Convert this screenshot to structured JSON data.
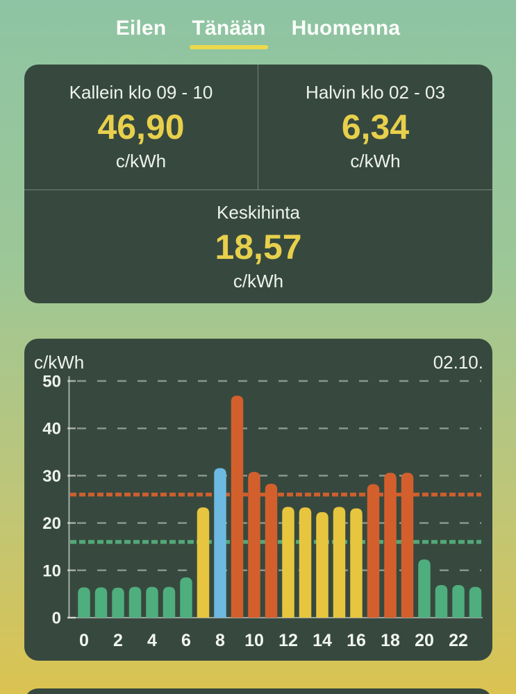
{
  "tabs": [
    {
      "label": "Eilen",
      "active": false
    },
    {
      "label": "Tänään",
      "active": true
    },
    {
      "label": "Huomenna",
      "active": false
    }
  ],
  "summary": {
    "expensive": {
      "label": "Kallein klo 09 - 10",
      "value": "46,90",
      "unit": "c/kWh"
    },
    "cheap": {
      "label": "Halvin klo 02 - 03",
      "value": "6,34",
      "unit": "c/kWh"
    },
    "average": {
      "label": "Keskihinta",
      "value": "18,57",
      "unit": "c/kWh"
    }
  },
  "chart_header": {
    "unit_label": "c/kWh",
    "date_label": "02.10."
  },
  "colors": {
    "accent_yellow": "#e8d04c",
    "tab_underline": "#ecd94a",
    "card_bg": "#37493e",
    "bar_cheap": "#4fae7d",
    "bar_normal": "#e7c53e",
    "bar_current": "#6db9e2",
    "bar_expensive": "#d35f2d",
    "threshold_expensive": "#cd5f2e",
    "threshold_cheap": "#53a878",
    "bg_top": "#8ec4a3",
    "bg_bottom": "#dbc351"
  },
  "chart_data": {
    "type": "bar",
    "ylabel": "c/kWh",
    "date": "02.10.",
    "hours": [
      0,
      1,
      2,
      3,
      4,
      5,
      6,
      7,
      8,
      9,
      10,
      11,
      12,
      13,
      14,
      15,
      16,
      17,
      18,
      19,
      20,
      21,
      22,
      23
    ],
    "values": [
      6.4,
      6.4,
      6.34,
      6.5,
      6.5,
      6.5,
      8.5,
      23.3,
      31.6,
      46.9,
      30.8,
      28.3,
      23.4,
      23.3,
      22.3,
      23.4,
      23.1,
      28.2,
      30.6,
      30.6,
      12.3,
      6.9,
      6.9,
      6.5
    ],
    "levels": [
      "cheap",
      "cheap",
      "cheap",
      "cheap",
      "cheap",
      "cheap",
      "cheap",
      "normal",
      "current",
      "expensive",
      "expensive",
      "expensive",
      "normal",
      "normal",
      "normal",
      "normal",
      "normal",
      "expensive",
      "expensive",
      "expensive",
      "cheap",
      "cheap",
      "cheap",
      "cheap"
    ],
    "current_hour": 8,
    "max_value": 46.9,
    "min_value": 6.34,
    "average_value": 18.57,
    "x_tick_labels": [
      "0",
      "2",
      "4",
      "6",
      "8",
      "10",
      "12",
      "14",
      "16",
      "18",
      "20",
      "22"
    ],
    "y_ticks": [
      0,
      10,
      20,
      30,
      40,
      50
    ],
    "ylim": [
      0,
      50
    ],
    "grid": "dashed-horizontal",
    "legend": "none",
    "threshold_lines": [
      {
        "name": "expensive-limit",
        "value": 26,
        "color": "#cd5f2e"
      },
      {
        "name": "cheap-limit",
        "value": 16,
        "color": "#53a878"
      }
    ]
  }
}
